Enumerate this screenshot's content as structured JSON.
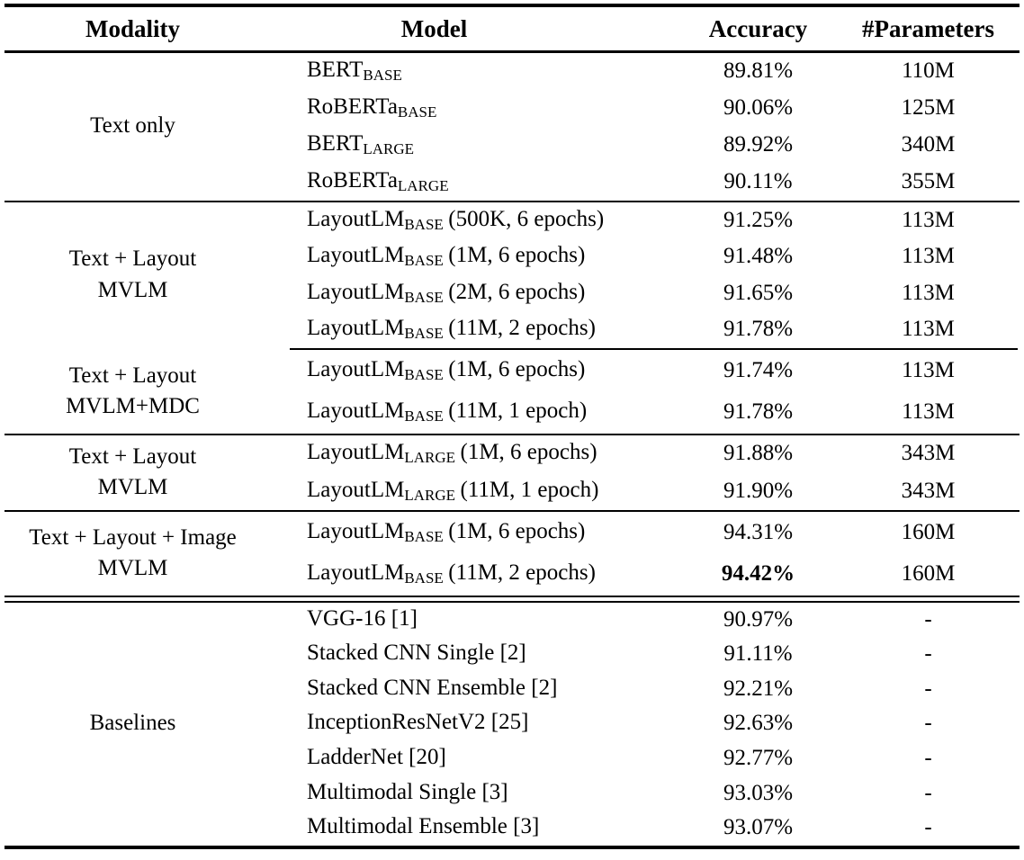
{
  "table": {
    "headers": {
      "modality": "Modality",
      "model": "Model",
      "accuracy": "Accuracy",
      "parameters": "#Parameters"
    },
    "sections": [
      {
        "modality": "Text only",
        "rows": [
          {
            "name": "BERT",
            "sub": "BASE",
            "suffix": "",
            "accuracy": "89.81%",
            "params": "110M"
          },
          {
            "name": "RoBERTa",
            "sub": "BASE",
            "suffix": "",
            "accuracy": "90.06%",
            "params": "125M"
          },
          {
            "name": "BERT",
            "sub": "LARGE",
            "suffix": "",
            "accuracy": "89.92%",
            "params": "340M"
          },
          {
            "name": "RoBERTa",
            "sub": "LARGE",
            "suffix": "",
            "accuracy": "90.11%",
            "params": "355M"
          }
        ]
      },
      {
        "modality": "Text + Layout\nMVLM",
        "rows": [
          {
            "name": "LayoutLM",
            "sub": "BASE",
            "suffix": "(500K, 6 epochs)",
            "accuracy": "91.25%",
            "params": "113M"
          },
          {
            "name": "LayoutLM",
            "sub": "BASE",
            "suffix": "(1M, 6 epochs)",
            "accuracy": "91.48%",
            "params": "113M"
          },
          {
            "name": "LayoutLM",
            "sub": "BASE",
            "suffix": "(2M, 6 epochs)",
            "accuracy": "91.65%",
            "params": "113M"
          },
          {
            "name": "LayoutLM",
            "sub": "BASE",
            "suffix": "(11M, 2 epochs)",
            "accuracy": "91.78%",
            "params": "113M"
          }
        ]
      },
      {
        "modality": "Text + Layout\nMVLM+MDC",
        "rows": [
          {
            "name": "LayoutLM",
            "sub": "BASE",
            "suffix": "(1M, 6 epochs)",
            "accuracy": "91.74%",
            "params": "113M"
          },
          {
            "name": "LayoutLM",
            "sub": "BASE",
            "suffix": "(11M, 1 epoch)",
            "accuracy": "91.78%",
            "params": "113M"
          }
        ]
      },
      {
        "modality": "Text + Layout\nMVLM",
        "rows": [
          {
            "name": "LayoutLM",
            "sub": "LARGE",
            "suffix": "(1M, 6 epochs)",
            "accuracy": "91.88%",
            "params": "343M"
          },
          {
            "name": "LayoutLM",
            "sub": "LARGE",
            "suffix": "(11M, 1 epoch)",
            "accuracy": "91.90%",
            "params": "343M"
          }
        ]
      },
      {
        "modality": "Text + Layout + Image\nMVLM",
        "rows": [
          {
            "name": "LayoutLM",
            "sub": "BASE",
            "suffix": "(1M, 6 epochs)",
            "accuracy": "94.31%",
            "params": "160M"
          },
          {
            "name": "LayoutLM",
            "sub": "BASE",
            "suffix": "(11M, 2 epochs)",
            "accuracy": "94.42%",
            "params": "160M",
            "bold": true
          }
        ]
      },
      {
        "modality": "Baselines",
        "rows": [
          {
            "name": "VGG-16 [1]",
            "sub": "",
            "suffix": "",
            "accuracy": "90.97%",
            "params": "-"
          },
          {
            "name": "Stacked CNN Single [2]",
            "sub": "",
            "suffix": "",
            "accuracy": "91.11%",
            "params": "-"
          },
          {
            "name": "Stacked CNN Ensemble [2]",
            "sub": "",
            "suffix": "",
            "accuracy": "92.21%",
            "params": "-"
          },
          {
            "name": "InceptionResNetV2 [25]",
            "sub": "",
            "suffix": "",
            "accuracy": "92.63%",
            "params": "-"
          },
          {
            "name": "LadderNet [20]",
            "sub": "",
            "suffix": "",
            "accuracy": "92.77%",
            "params": "-"
          },
          {
            "name": "Multimodal Single [3]",
            "sub": "",
            "suffix": "",
            "accuracy": "93.03%",
            "params": "-"
          },
          {
            "name": "Multimodal Ensemble [3]",
            "sub": "",
            "suffix": "",
            "accuracy": "93.07%",
            "params": "-"
          }
        ]
      }
    ]
  },
  "colors": {
    "text": "#000000",
    "background": "#ffffff",
    "rule": "#000000"
  }
}
